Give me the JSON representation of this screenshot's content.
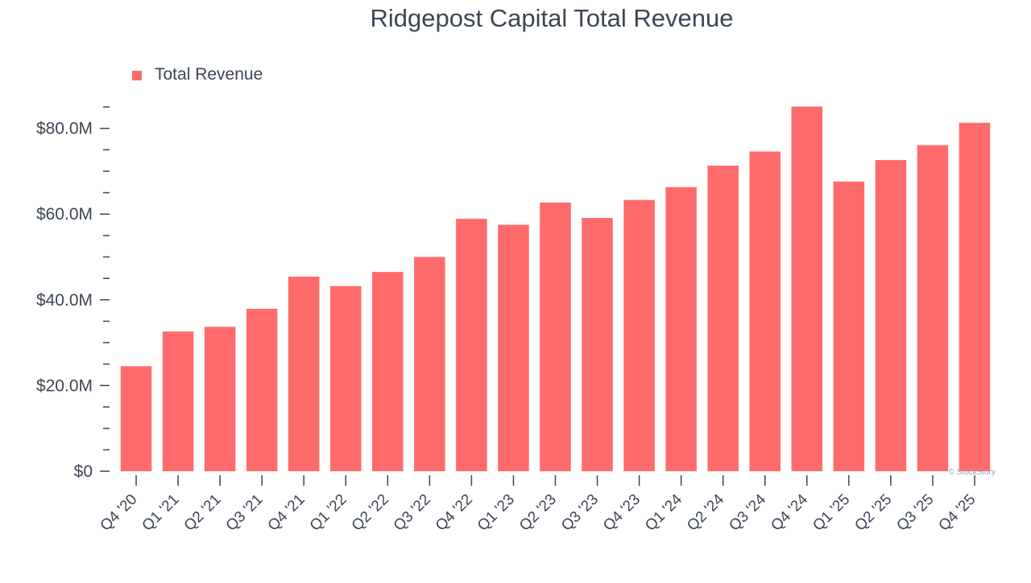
{
  "chart_data": {
    "type": "bar",
    "title": "Ridgepost Capital Total Revenue",
    "legend": {
      "label": "Total Revenue",
      "position": "top-left"
    },
    "xlabel": "",
    "ylabel": "",
    "ylim": [
      0,
      85
    ],
    "y_unit": "$M",
    "yticks": [
      {
        "value": 0,
        "label": "$0"
      },
      {
        "value": 20,
        "label": "$20.0M"
      },
      {
        "value": 40,
        "label": "$40.0M"
      },
      {
        "value": 60,
        "label": "$60.0M"
      },
      {
        "value": 80,
        "label": "$80.0M"
      }
    ],
    "grid": false,
    "bar_color": "#ff6b6b",
    "text_color": "#3d4654",
    "watermark": "© StockStory",
    "categories": [
      "Q4 '20",
      "Q1 '21",
      "Q2 '21",
      "Q3 '21",
      "Q4 '21",
      "Q1 '22",
      "Q2 '22",
      "Q3 '22",
      "Q4 '22",
      "Q1 '23",
      "Q2 '23",
      "Q3 '23",
      "Q4 '23",
      "Q1 '24",
      "Q2 '24",
      "Q3 '24",
      "Q4 '24",
      "Q1 '25",
      "Q2 '25",
      "Q3 '25",
      "Q4 '25"
    ],
    "series": [
      {
        "name": "Total Revenue",
        "values": [
          24.5,
          32.6,
          33.7,
          37.9,
          45.4,
          43.2,
          46.5,
          50.0,
          58.9,
          57.5,
          62.7,
          59.1,
          63.3,
          66.3,
          71.3,
          74.6,
          85.1,
          67.6,
          72.6,
          76.1,
          81.3
        ]
      }
    ]
  }
}
